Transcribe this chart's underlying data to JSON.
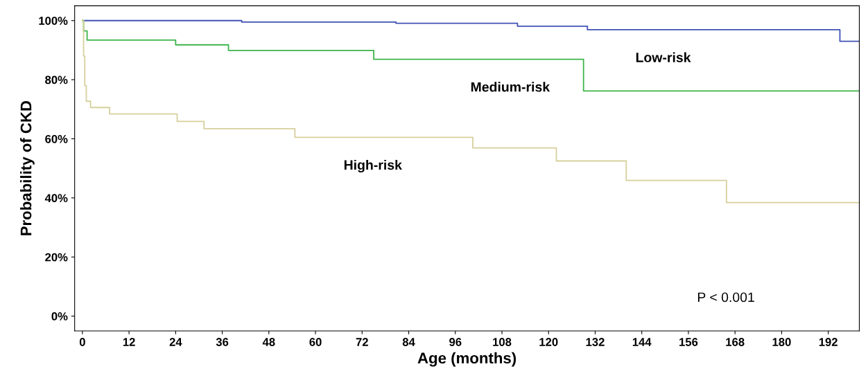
{
  "chart_data": {
    "type": "step",
    "xlabel": "Age (months)",
    "ylabel": "Probability of CKD",
    "xlim": [
      -2,
      200
    ],
    "xticks": [
      0,
      12,
      24,
      36,
      48,
      60,
      72,
      84,
      96,
      108,
      120,
      132,
      144,
      156,
      168,
      180,
      192
    ],
    "ylim": [
      -5,
      105
    ],
    "yticks": [
      {
        "value": 0,
        "label": "0%"
      },
      {
        "value": 20,
        "label": "20%"
      },
      {
        "value": 40,
        "label": "40%"
      },
      {
        "value": 60,
        "label": "60%"
      },
      {
        "value": 80,
        "label": "80%"
      },
      {
        "value": 100,
        "label": "100%"
      }
    ],
    "grid": false,
    "series": [
      {
        "name": "Low-risk",
        "color": "#3f51b5",
        "x": [
          0,
          41,
          80.7,
          112,
          130,
          195,
          200
        ],
        "values": [
          100,
          99.5,
          99.1,
          98.1,
          96.9,
          93.0,
          93.0
        ]
      },
      {
        "name": "Medium-risk",
        "color": "#3cb44b",
        "x": [
          0,
          0.3,
          1.2,
          24,
          37.6,
          75,
          129,
          200
        ],
        "values": [
          100,
          96.5,
          93.4,
          91.8,
          89.9,
          86.9,
          76.2,
          76.2
        ]
      },
      {
        "name": "High-risk",
        "color": "#d6d09c",
        "x": [
          0,
          0.3,
          0.6,
          1,
          2.1,
          7,
          24.4,
          31.3,
          54.7,
          100.5,
          122,
          140,
          165.8,
          200
        ],
        "values": [
          100,
          88,
          78,
          72.7,
          70.6,
          68.4,
          65.9,
          63.4,
          60.5,
          56.9,
          52.5,
          45.9,
          38.4,
          38.4
        ]
      }
    ],
    "annotations": [
      "P < 0.001"
    ]
  }
}
